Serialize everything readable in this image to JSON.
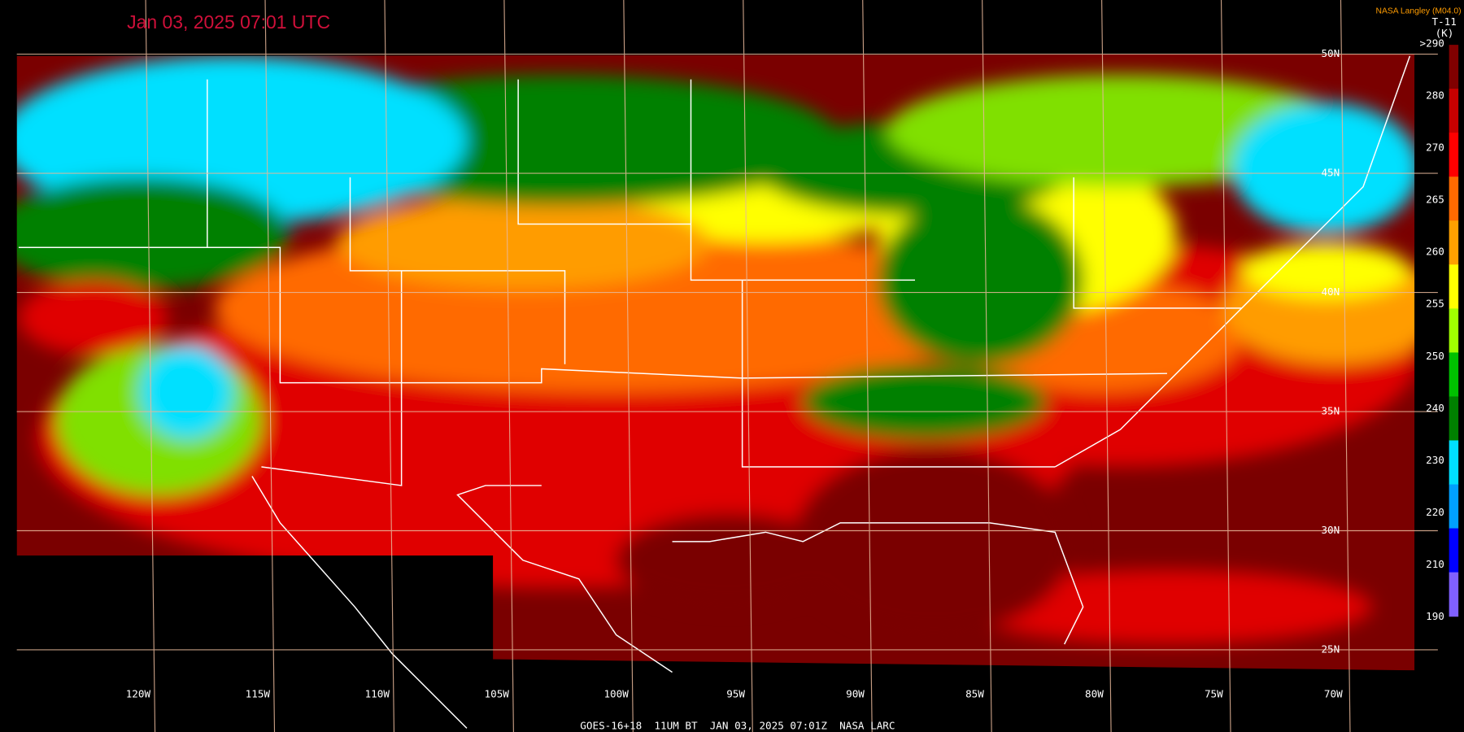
{
  "header": {
    "title": "Jan 03, 2025 07:01 UTC",
    "source": "NASA Langley (M04.0)",
    "channel": "T-11",
    "unit": "(K)"
  },
  "longitude_labels": [
    "120W",
    "115W",
    "110W",
    "105W",
    "100W",
    "95W",
    "90W",
    "85W",
    "80W",
    "75W",
    "70W"
  ],
  "latitude_labels": [
    "50N",
    "45N",
    "40N",
    "35N",
    "30N",
    "25N"
  ],
  "colorbar": {
    "labels": [
      ">290",
      "280",
      "270",
      "265",
      "260",
      "255",
      "250",
      "240",
      "230",
      "220",
      "210",
      "190"
    ]
  },
  "footer": "GOES-16+18  11UM BT  JAN 03, 2025 07:01Z  NASA LARC"
}
